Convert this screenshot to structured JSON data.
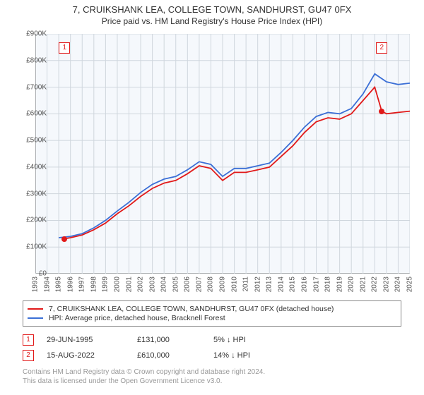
{
  "title": {
    "main": "7, CRUIKSHANK LEA, COLLEGE TOWN, SANDHURST, GU47 0FX",
    "sub": "Price paid vs. HM Land Registry's House Price Index (HPI)"
  },
  "chart": {
    "type": "line",
    "background_color": "#f5f8fc",
    "grid_color": "#cfd6dd",
    "axis_color": "#888888",
    "x": {
      "min": 1993,
      "max": 2025,
      "tick_step": 1
    },
    "y": {
      "min": 0,
      "max": 900000,
      "tick_step": 100000,
      "tick_prefix": "£",
      "tick_format": "K"
    },
    "series": [
      {
        "name": "price_paid",
        "label": "7, CRUIKSHANK LEA, COLLEGE TOWN, SANDHURST, GU47 0FX (detached house)",
        "color": "#e11919",
        "points": [
          [
            1995.5,
            131000
          ],
          [
            1996,
            135000
          ],
          [
            1997,
            145000
          ],
          [
            1998,
            165000
          ],
          [
            1999,
            190000
          ],
          [
            2000,
            225000
          ],
          [
            2001,
            255000
          ],
          [
            2002,
            290000
          ],
          [
            2003,
            320000
          ],
          [
            2004,
            340000
          ],
          [
            2005,
            350000
          ],
          [
            2006,
            375000
          ],
          [
            2007,
            405000
          ],
          [
            2008,
            395000
          ],
          [
            2009,
            350000
          ],
          [
            2010,
            380000
          ],
          [
            2011,
            380000
          ],
          [
            2012,
            390000
          ],
          [
            2013,
            400000
          ],
          [
            2014,
            440000
          ],
          [
            2015,
            480000
          ],
          [
            2016,
            530000
          ],
          [
            2017,
            570000
          ],
          [
            2018,
            585000
          ],
          [
            2019,
            580000
          ],
          [
            2020,
            600000
          ],
          [
            2021,
            650000
          ],
          [
            2022,
            700000
          ],
          [
            2022.6,
            610000
          ],
          [
            2023,
            600000
          ],
          [
            2024,
            605000
          ],
          [
            2025,
            610000
          ]
        ]
      },
      {
        "name": "hpi",
        "label": "HPI: Average price, detached house, Bracknell Forest",
        "color": "#3b6fd6",
        "points": [
          [
            1995,
            135000
          ],
          [
            1996,
            140000
          ],
          [
            1997,
            150000
          ],
          [
            1998,
            172000
          ],
          [
            1999,
            200000
          ],
          [
            2000,
            235000
          ],
          [
            2001,
            268000
          ],
          [
            2002,
            305000
          ],
          [
            2003,
            335000
          ],
          [
            2004,
            355000
          ],
          [
            2005,
            365000
          ],
          [
            2006,
            390000
          ],
          [
            2007,
            420000
          ],
          [
            2008,
            410000
          ],
          [
            2009,
            365000
          ],
          [
            2010,
            395000
          ],
          [
            2011,
            395000
          ],
          [
            2012,
            405000
          ],
          [
            2013,
            415000
          ],
          [
            2014,
            455000
          ],
          [
            2015,
            500000
          ],
          [
            2016,
            550000
          ],
          [
            2017,
            590000
          ],
          [
            2018,
            605000
          ],
          [
            2019,
            600000
          ],
          [
            2020,
            620000
          ],
          [
            2021,
            675000
          ],
          [
            2022,
            750000
          ],
          [
            2023,
            720000
          ],
          [
            2024,
            710000
          ],
          [
            2025,
            715000
          ]
        ]
      }
    ],
    "markers": [
      {
        "idx": "1",
        "year": 1995.5,
        "price": 131000,
        "color": "#e11919"
      },
      {
        "idx": "2",
        "year": 2022.6,
        "price": 610000,
        "color": "#e11919"
      }
    ]
  },
  "legend": {
    "items": [
      {
        "color": "#e11919",
        "label": "7, CRUIKSHANK LEA, COLLEGE TOWN, SANDHURST, GU47 0FX (detached house)"
      },
      {
        "color": "#3b6fd6",
        "label": "HPI: Average price, detached house, Bracknell Forest"
      }
    ]
  },
  "transactions": [
    {
      "idx": "1",
      "color": "#e11919",
      "date": "29-JUN-1995",
      "price": "£131,000",
      "diff": "5% ↓ HPI"
    },
    {
      "idx": "2",
      "color": "#e11919",
      "date": "15-AUG-2022",
      "price": "£610,000",
      "diff": "14% ↓ HPI"
    }
  ],
  "footnote": {
    "line1": "Contains HM Land Registry data © Crown copyright and database right 2024.",
    "line2": "This data is licensed under the Open Government Licence v3.0."
  }
}
